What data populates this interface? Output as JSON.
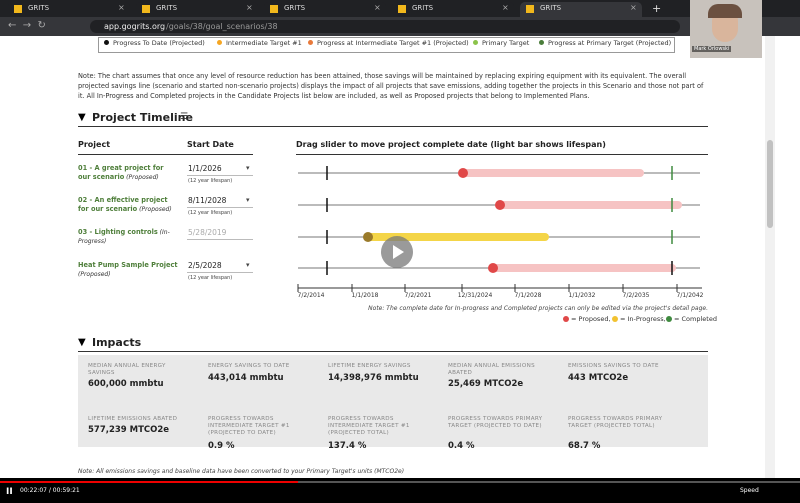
{
  "browser": {
    "tabs": [
      "GRITS",
      "GRITS",
      "GRITS",
      "GRITS",
      "GRITS"
    ],
    "new_tab": "+",
    "url_host": "app.gogrits.org",
    "url_path": "/goals/38/goal_scenarios/38"
  },
  "webcam_name": "Mark Orlowski",
  "legend": [
    "Progress To Date (Projected)",
    "Intermediate Target #1",
    "Progress at Intermediate Target #1 (Projected)",
    "Primary Target",
    "Progress at Primary Target (Projected)"
  ],
  "note": "Note: The chart assumes that once any level of resource reduction has been attained, those savings will be maintained by replacing expiring equipment with its equivalent. The overall projected savings line (scenario and started non-scenario projects) displays the impact of all projects that save emissions, adding together the projects in this Scenario and those not part of it. All In-Progress and Completed projects in the Candidate Projects list below are included, as well as Proposed projects that belong to Implemented Plans.",
  "timeline": {
    "title": "Project Timeline",
    "headers": [
      "Project",
      "Start Date",
      "Drag slider to move project complete date (light bar shows lifespan)"
    ],
    "projects": [
      {
        "name": "01 - A great project for our scenario",
        "status": "(Proposed)",
        "start": "1/1/2026",
        "lifespan": "(12 year lifespan)"
      },
      {
        "name": "02 - An effective project for our scenario",
        "status": "(Proposed)",
        "start": "8/11/2028",
        "lifespan": "(12 year lifespan)"
      },
      {
        "name": "03 - Lighting controls",
        "status": "(In-Progress)",
        "start": "5/28/2019"
      },
      {
        "name": "Heat Pump Sample Project",
        "status": "(Proposed)",
        "start": "2/5/2028",
        "lifespan": "(12 year lifespan)"
      }
    ],
    "axis_labels": [
      "7/2/2014",
      "1/1/2018",
      "7/2/2021",
      "12/31/2024",
      "7/1/2028",
      "1/1/2032",
      "7/2/2035",
      "7/1/2042"
    ],
    "footnote": "Note: The complete date for In-progress and Completed projects can only be edited via the project's detail page.",
    "status_legend": [
      "= Proposed,",
      "= In-Progress,",
      "= Completed"
    ]
  },
  "impacts": {
    "title": "Impacts",
    "metrics": [
      {
        "label": "MEDIAN ANNUAL ENERGY SAVINGS",
        "value": "600,000 mmbtu"
      },
      {
        "label": "ENERGY SAVINGS TO DATE",
        "value": "443,014 mmbtu"
      },
      {
        "label": "LIFETIME ENERGY SAVINGS",
        "value": "14,398,976 mmbtu"
      },
      {
        "label": "MEDIAN ANNUAL EMISSIONS ABATED",
        "value": "25,469 MTCO2e"
      },
      {
        "label": "EMISSIONS SAVINGS TO DATE",
        "value": "443 MTCO2e"
      },
      {
        "label": "LIFETIME EMISSIONS ABATED",
        "value": "577,239 MTCO2e"
      },
      {
        "label": "PROGRESS TOWARDS INTERMEDIATE TARGET #1 (PROJECTED TO DATE)",
        "value": "0.9 %"
      },
      {
        "label": "PROGRESS TOWARDS INTERMEDIATE TARGET #1 (PROJECTED TOTAL)",
        "value": "137.4 %"
      },
      {
        "label": "PROGRESS TOWARDS PRIMARY TARGET (PROJECTED TO DATE)",
        "value": "0.4 %"
      },
      {
        "label": "PROGRESS TOWARDS PRIMARY TARGET (PROJECTED TOTAL)",
        "value": "68.7 %"
      }
    ],
    "note": "Note: All emissions savings and baseline data have been converted to your Primary Target's units (MTCO2e)"
  },
  "player": {
    "time": "00:22:07 / 00:59:21",
    "speed": "Speed"
  }
}
